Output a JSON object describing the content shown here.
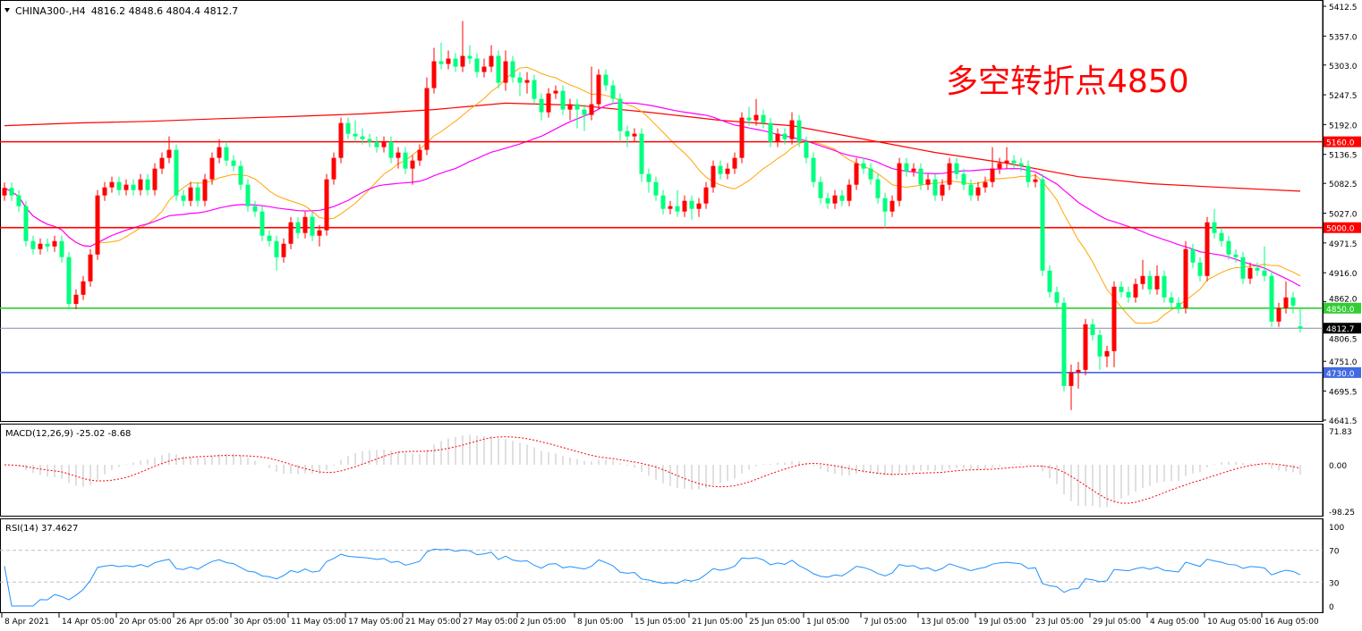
{
  "header": {
    "symbol": "CHINA300-,H4",
    "ohlc_text": "4816.2 4848.6 4804.4 4812.7"
  },
  "annotation": {
    "text": "多空转折点4850",
    "color": "#ff0000"
  },
  "colors": {
    "bull": "#ff0000",
    "bear": "#00ff7f",
    "ma_fast": "#ffa500",
    "ma_mid": "#ff00ff",
    "ma_slow": "#ff0000",
    "macd_hist": "#c0c0c0",
    "macd_signal": "#ff0000",
    "rsi": "#1e90ff"
  },
  "chart_data": [
    {
      "type": "candlestick",
      "title": "CHINA300-,H4",
      "ylim": [
        4641.5,
        5412.5
      ],
      "y_ticks": [
        "5412.5",
        "5357.0",
        "5303.0",
        "5247.5",
        "5192.0",
        "5136.5",
        "5082.5",
        "5027.0",
        "4971.5",
        "4916.0",
        "4862.0",
        "4806.5",
        "4751.0",
        "4695.5",
        "4641.5"
      ],
      "x_tick_labels": [
        "8 Apr 2021",
        "14 Apr 05:00",
        "20 Apr 05:00",
        "26 Apr 05:00",
        "30 Apr 05:00",
        "11 May 05:00",
        "17 May 05:00",
        "21 May 05:00",
        "27 May 05:00",
        "2 Jun 05:00",
        "8 Jun 05:00",
        "15 Jun 05:00",
        "21 Jun 05:00",
        "25 Jun 05:00",
        "1 Jul 05:00",
        "7 Jul 05:00",
        "13 Jul 05:00",
        "19 Jul 05:00",
        "23 Jul 05:00",
        "29 Jul 05:00",
        "4 Aug 05:00",
        "10 Aug 05:00",
        "16 Aug 05:00"
      ],
      "x_tick_every_bars": 8,
      "levels": [
        {
          "value": 5160.0,
          "label": "5160.0",
          "color": "#ff0000"
        },
        {
          "value": 5000.0,
          "label": "5000.0",
          "color": "#ff0000"
        },
        {
          "value": 4850.0,
          "label": "4850.0",
          "color": "#32cd32"
        },
        {
          "value": 4812.7,
          "label": "4812.7",
          "color": "#000000",
          "line": "#8090a0"
        },
        {
          "value": 4730.0,
          "label": "4730.0",
          "color": "#4169e1"
        }
      ],
      "ma_slow_points": [
        [
          0,
          5190
        ],
        [
          10,
          5195
        ],
        [
          20,
          5198
        ],
        [
          30,
          5203
        ],
        [
          40,
          5207
        ],
        [
          50,
          5212
        ],
        [
          60,
          5220
        ],
        [
          70,
          5232
        ],
        [
          80,
          5228
        ],
        [
          90,
          5215
        ],
        [
          100,
          5200
        ],
        [
          110,
          5190
        ],
        [
          120,
          5165
        ],
        [
          130,
          5140
        ],
        [
          140,
          5120
        ],
        [
          150,
          5095
        ],
        [
          160,
          5082
        ],
        [
          170,
          5075
        ],
        [
          181,
          5068
        ]
      ],
      "ohlc": [
        [
          5060,
          5084,
          5050,
          5074
        ],
        [
          5074,
          5084,
          5050,
          5060
        ],
        [
          5060,
          5070,
          5030,
          5040
        ],
        [
          5040,
          5050,
          4965,
          4975
        ],
        [
          4975,
          4985,
          4950,
          4960
        ],
        [
          4960,
          4980,
          4950,
          4970
        ],
        [
          4970,
          4980,
          4955,
          4965
        ],
        [
          4965,
          4985,
          4955,
          4975
        ],
        [
          4975,
          4985,
          4935,
          4945
        ],
        [
          4945,
          4955,
          4848,
          4858
        ],
        [
          4858,
          4885,
          4848,
          4875
        ],
        [
          4875,
          4910,
          4865,
          4900
        ],
        [
          4900,
          4960,
          4890,
          4950
        ],
        [
          4950,
          5070,
          4940,
          5060
        ],
        [
          5060,
          5085,
          5050,
          5075
        ],
        [
          5075,
          5095,
          5065,
          5085
        ],
        [
          5085,
          5095,
          5060,
          5070
        ],
        [
          5070,
          5090,
          5060,
          5080
        ],
        [
          5080,
          5090,
          5060,
          5070
        ],
        [
          5070,
          5100,
          5060,
          5090
        ],
        [
          5090,
          5100,
          5060,
          5070
        ],
        [
          5070,
          5120,
          5060,
          5110
        ],
        [
          5110,
          5140,
          5100,
          5130
        ],
        [
          5130,
          5170,
          5120,
          5145
        ],
        [
          5145,
          5155,
          5050,
          5060
        ],
        [
          5060,
          5070,
          5040,
          5050
        ],
        [
          5050,
          5085,
          5040,
          5075
        ],
        [
          5075,
          5085,
          5040,
          5050
        ],
        [
          5050,
          5100,
          5040,
          5090
        ],
        [
          5090,
          5140,
          5080,
          5130
        ],
        [
          5130,
          5165,
          5120,
          5150
        ],
        [
          5150,
          5160,
          5115,
          5125
        ],
        [
          5125,
          5135,
          5105,
          5115
        ],
        [
          5115,
          5125,
          5070,
          5080
        ],
        [
          5080,
          5090,
          5030,
          5040
        ],
        [
          5040,
          5050,
          5020,
          5030
        ],
        [
          5030,
          5040,
          4975,
          4985
        ],
        [
          4985,
          4995,
          4965,
          4975
        ],
        [
          4975,
          4985,
          4920,
          4945
        ],
        [
          4945,
          4980,
          4935,
          4970
        ],
        [
          4970,
          5020,
          4960,
          5010
        ],
        [
          5010,
          5020,
          4980,
          4990
        ],
        [
          4990,
          5030,
          4980,
          5020
        ],
        [
          5020,
          5030,
          4975,
          4985
        ],
        [
          4985,
          5005,
          4965,
          4995
        ],
        [
          4995,
          5100,
          4985,
          5090
        ],
        [
          5090,
          5140,
          5080,
          5130
        ],
        [
          5130,
          5205,
          5120,
          5195
        ],
        [
          5195,
          5205,
          5165,
          5175
        ],
        [
          5175,
          5200,
          5160,
          5170
        ],
        [
          5170,
          5185,
          5155,
          5165
        ],
        [
          5165,
          5175,
          5150,
          5160
        ],
        [
          5160,
          5170,
          5140,
          5150
        ],
        [
          5150,
          5170,
          5140,
          5160
        ],
        [
          5160,
          5170,
          5120,
          5130
        ],
        [
          5130,
          5150,
          5110,
          5140
        ],
        [
          5140,
          5150,
          5100,
          5110
        ],
        [
          5110,
          5135,
          5080,
          5125
        ],
        [
          5125,
          5155,
          5115,
          5145
        ],
        [
          5145,
          5280,
          5135,
          5260
        ],
        [
          5260,
          5335,
          5250,
          5310
        ],
        [
          5310,
          5345,
          5295,
          5305
        ],
        [
          5305,
          5330,
          5295,
          5315
        ],
        [
          5315,
          5325,
          5290,
          5300
        ],
        [
          5300,
          5385,
          5290,
          5320
        ],
        [
          5320,
          5340,
          5305,
          5315
        ],
        [
          5315,
          5325,
          5280,
          5290
        ],
        [
          5290,
          5315,
          5280,
          5300
        ],
        [
          5300,
          5340,
          5290,
          5320
        ],
        [
          5320,
          5330,
          5260,
          5270
        ],
        [
          5270,
          5330,
          5255,
          5310
        ],
        [
          5310,
          5320,
          5270,
          5280
        ],
        [
          5280,
          5290,
          5245,
          5270
        ],
        [
          5270,
          5290,
          5250,
          5275
        ],
        [
          5275,
          5285,
          5230,
          5240
        ],
        [
          5240,
          5250,
          5200,
          5215
        ],
        [
          5215,
          5260,
          5205,
          5250
        ],
        [
          5250,
          5265,
          5240,
          5255
        ],
        [
          5255,
          5265,
          5210,
          5220
        ],
        [
          5220,
          5240,
          5200,
          5230
        ],
        [
          5230,
          5240,
          5185,
          5220
        ],
        [
          5220,
          5230,
          5180,
          5210
        ],
        [
          5210,
          5300,
          5200,
          5230
        ],
        [
          5230,
          5295,
          5220,
          5285
        ],
        [
          5285,
          5295,
          5255,
          5265
        ],
        [
          5265,
          5275,
          5230,
          5240
        ],
        [
          5240,
          5250,
          5160,
          5180
        ],
        [
          5180,
          5190,
          5150,
          5170
        ],
        [
          5170,
          5185,
          5160,
          5175
        ],
        [
          5175,
          5185,
          5085,
          5100
        ],
        [
          5100,
          5110,
          5065,
          5085
        ],
        [
          5085,
          5095,
          5050,
          5060
        ],
        [
          5060,
          5070,
          5025,
          5035
        ],
        [
          5035,
          5050,
          5025,
          5040
        ],
        [
          5040,
          5070,
          5020,
          5030
        ],
        [
          5030,
          5060,
          5020,
          5050
        ],
        [
          5050,
          5060,
          5015,
          5035
        ],
        [
          5035,
          5055,
          5020,
          5045
        ],
        [
          5045,
          5085,
          5035,
          5075
        ],
        [
          5075,
          5125,
          5065,
          5115
        ],
        [
          5115,
          5125,
          5090,
          5100
        ],
        [
          5100,
          5120,
          5090,
          5110
        ],
        [
          5110,
          5140,
          5100,
          5130
        ],
        [
          5130,
          5215,
          5120,
          5205
        ],
        [
          5205,
          5225,
          5190,
          5200
        ],
        [
          5200,
          5240,
          5190,
          5210
        ],
        [
          5210,
          5220,
          5185,
          5195
        ],
        [
          5195,
          5205,
          5150,
          5160
        ],
        [
          5160,
          5185,
          5150,
          5175
        ],
        [
          5175,
          5185,
          5155,
          5165
        ],
        [
          5165,
          5215,
          5155,
          5200
        ],
        [
          5200,
          5210,
          5150,
          5160
        ],
        [
          5160,
          5170,
          5120,
          5130
        ],
        [
          5130,
          5140,
          5075,
          5085
        ],
        [
          5085,
          5095,
          5045,
          5055
        ],
        [
          5055,
          5065,
          5035,
          5045
        ],
        [
          5045,
          5070,
          5035,
          5060
        ],
        [
          5060,
          5070,
          5040,
          5050
        ],
        [
          5050,
          5090,
          5040,
          5080
        ],
        [
          5080,
          5130,
          5070,
          5120
        ],
        [
          5120,
          5130,
          5100,
          5110
        ],
        [
          5110,
          5120,
          5080,
          5090
        ],
        [
          5090,
          5100,
          5045,
          5055
        ],
        [
          5055,
          5065,
          5000,
          5030
        ],
        [
          5030,
          5060,
          5020,
          5050
        ],
        [
          5050,
          5130,
          5040,
          5120
        ],
        [
          5120,
          5130,
          5095,
          5105
        ],
        [
          5105,
          5120,
          5095,
          5110
        ],
        [
          5110,
          5120,
          5070,
          5080
        ],
        [
          5080,
          5100,
          5070,
          5090
        ],
        [
          5090,
          5100,
          5050,
          5060
        ],
        [
          5060,
          5090,
          5050,
          5080
        ],
        [
          5080,
          5130,
          5070,
          5120
        ],
        [
          5120,
          5130,
          5090,
          5100
        ],
        [
          5100,
          5110,
          5070,
          5080
        ],
        [
          5080,
          5090,
          5050,
          5060
        ],
        [
          5060,
          5085,
          5050,
          5075
        ],
        [
          5075,
          5095,
          5065,
          5085
        ],
        [
          5085,
          5150,
          5075,
          5110
        ],
        [
          5110,
          5130,
          5100,
          5120
        ],
        [
          5120,
          5150,
          5110,
          5125
        ],
        [
          5125,
          5135,
          5110,
          5120
        ],
        [
          5120,
          5130,
          5105,
          5115
        ],
        [
          5115,
          5125,
          5075,
          5085
        ],
        [
          5085,
          5100,
          5075,
          5090
        ],
        [
          5090,
          5100,
          4910,
          4920
        ],
        [
          4920,
          4930,
          4870,
          4880
        ],
        [
          4880,
          4890,
          4850,
          4860
        ],
        [
          4860,
          4870,
          4695,
          4705
        ],
        [
          4705,
          4745,
          4660,
          4730
        ],
        [
          4730,
          4750,
          4700,
          4735
        ],
        [
          4735,
          4830,
          4725,
          4820
        ],
        [
          4820,
          4830,
          4790,
          4800
        ],
        [
          4800,
          4810,
          4735,
          4760
        ],
        [
          4760,
          4780,
          4740,
          4770
        ],
        [
          4770,
          4900,
          4740,
          4890
        ],
        [
          4890,
          4900,
          4870,
          4880
        ],
        [
          4880,
          4890,
          4860,
          4870
        ],
        [
          4870,
          4905,
          4860,
          4895
        ],
        [
          4895,
          4940,
          4885,
          4910
        ],
        [
          4910,
          4920,
          4875,
          4885
        ],
        [
          4885,
          4930,
          4875,
          4910
        ],
        [
          4910,
          4920,
          4860,
          4870
        ],
        [
          4870,
          4880,
          4850,
          4860
        ],
        [
          4860,
          4870,
          4840,
          4850
        ],
        [
          4850,
          4975,
          4840,
          4960
        ],
        [
          4960,
          4970,
          4925,
          4935
        ],
        [
          4935,
          4945,
          4900,
          4910
        ],
        [
          4910,
          5020,
          4900,
          5010
        ],
        [
          5010,
          5035,
          4980,
          4990
        ],
        [
          4990,
          5000,
          4965,
          4975
        ],
        [
          4975,
          4985,
          4940,
          4950
        ],
        [
          4950,
          4960,
          4935,
          4945
        ],
        [
          4945,
          4955,
          4895,
          4905
        ],
        [
          4905,
          4935,
          4895,
          4925
        ],
        [
          4925,
          4935,
          4910,
          4920
        ],
        [
          4920,
          4965,
          4900,
          4910
        ],
        [
          4910,
          4920,
          4815,
          4825
        ],
        [
          4825,
          4860,
          4815,
          4850
        ],
        [
          4850,
          4900,
          4840,
          4870
        ],
        [
          4870,
          4880,
          4840,
          4855
        ],
        [
          4816.2,
          4848.6,
          4804.4,
          4812.7
        ]
      ]
    },
    {
      "type": "bar+line",
      "title": "MACD(12,26,9) -25.02 -8.68",
      "ylim": [
        -98.25,
        71.83
      ],
      "y_ticks": [
        "71.83",
        "0.00",
        "-98.25"
      ]
    },
    {
      "type": "line",
      "title": "RSI(14) 37.4627",
      "ylim": [
        0,
        100
      ],
      "y_ticks": [
        "100",
        "70",
        "30",
        "0"
      ],
      "levels": [
        70,
        30
      ]
    }
  ]
}
